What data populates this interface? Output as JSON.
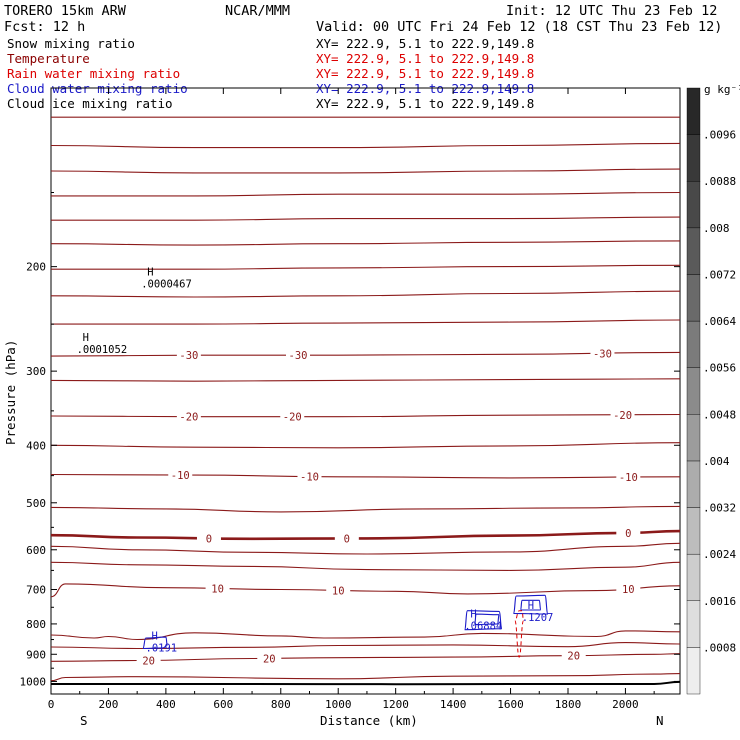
{
  "header": {
    "model": "TORERO  15km ARW",
    "center": "NCAR/MMM",
    "init": "Init: 12 UTC Thu 23 Feb 12",
    "fcst": "Fcst:   12 h",
    "valid": "Valid: 00 UTC Fri 24 Feb 12 (18 CST Thu 23 Feb 12)"
  },
  "legend": [
    {
      "label": "Snow mixing ratio",
      "xy": "XY= 222.9,  5.1 to 222.9,149.8",
      "color": "#000000"
    },
    {
      "label": "Temperature",
      "xy": "XY= 222.9,  5.1 to 222.9,149.8",
      "color": "#8b0000"
    },
    {
      "label": "Rain water mixing ratio",
      "xy": "XY= 222.9,  5.1 to 222.9,149.8",
      "color": "#dd0000"
    },
    {
      "label": "Cloud water mixing ratio",
      "xy": "XY= 222.9,  5.1 to 222.9,149.8",
      "color": "#1a1ac8"
    },
    {
      "label": "Cloud ice mixing ratio",
      "xy": "XY= 222.9,  5.1 to 222.9,149.8",
      "color": "#000000"
    }
  ],
  "colorbar": {
    "unit": "g kg⁻¹",
    "labels": [
      ".0096",
      ".0088",
      ".008",
      ".0072",
      ".0064",
      ".0056",
      ".0048",
      ".004",
      ".0032",
      ".0024",
      ".0016",
      ".0008"
    ],
    "levels": [
      0.0008,
      0.0016,
      0.0024,
      0.0032,
      0.004,
      0.0048,
      0.0056,
      0.0064,
      0.0072,
      0.008,
      0.0088,
      0.0096,
      0.0104
    ]
  },
  "chart_data": {
    "type": "cross-section contour",
    "xlabel": "Distance (km)",
    "ylabel": "Pressure (hPa)",
    "xlim": [
      0,
      2190
    ],
    "ylim": [
      1050,
      100
    ],
    "yscale": "log",
    "x_ticks": [
      0,
      200,
      400,
      600,
      800,
      1000,
      1200,
      1400,
      1600,
      1800,
      2000
    ],
    "y_ticks": [
      200,
      300,
      400,
      500,
      600,
      700,
      800,
      900,
      1000
    ],
    "x_end_labels": {
      "left": "S",
      "right": "N"
    },
    "temperature_isotherms": [
      {
        "p": [
          112,
          112,
          112,
          112,
          112
        ],
        "x": [
          0,
          500,
          1000,
          1600,
          2190
        ]
      },
      {
        "p": [
          125,
          126,
          126,
          125,
          124
        ],
        "x": [
          0,
          500,
          1000,
          1600,
          2190
        ]
      },
      {
        "p": [
          138,
          139,
          139,
          138,
          137
        ],
        "x": [
          0,
          500,
          1000,
          1600,
          2190
        ]
      },
      {
        "p": [
          152,
          152,
          151,
          151,
          150
        ],
        "x": [
          0,
          500,
          1000,
          1600,
          2190
        ]
      },
      {
        "p": [
          167,
          167,
          166,
          166,
          165
        ],
        "x": [
          0,
          500,
          1000,
          1600,
          2190
        ]
      },
      {
        "p": [
          183,
          184,
          183,
          182,
          181
        ],
        "x": [
          0,
          500,
          1000,
          1600,
          2190
        ]
      },
      {
        "p": [
          202,
          202,
          201,
          200,
          199
        ],
        "x": [
          0,
          500,
          1000,
          1600,
          2190
        ]
      },
      {
        "p": [
          224,
          225,
          224,
          222,
          220
        ],
        "x": [
          0,
          500,
          1000,
          1600,
          2190
        ]
      },
      {
        "p": [
          250,
          250,
          249,
          248,
          246
        ],
        "x": [
          0,
          500,
          1000,
          1600,
          2190
        ]
      },
      {
        "label": "-30",
        "label_x": [
          480,
          860,
          1920
        ],
        "p": [
          283,
          282,
          282,
          281,
          279
        ],
        "x": [
          0,
          500,
          1000,
          1600,
          2190
        ]
      },
      {
        "p": [
          311,
          312,
          311,
          310,
          309
        ],
        "x": [
          0,
          500,
          1000,
          1600,
          2190
        ]
      },
      {
        "label": "-20",
        "label_x": [
          480,
          840,
          1990
        ],
        "p": [
          357,
          358,
          358,
          356,
          355
        ],
        "x": [
          0,
          500,
          1000,
          1600,
          2190
        ]
      },
      {
        "p": [
          400,
          403,
          404,
          401,
          396
        ],
        "x": [
          0,
          500,
          1000,
          1600,
          2190
        ]
      },
      {
        "label": "-10",
        "label_x": [
          450,
          900,
          2010
        ],
        "p": [
          448,
          449,
          452,
          454,
          452
        ],
        "x": [
          0,
          500,
          1000,
          1600,
          2190
        ]
      },
      {
        "p": [
          509,
          512,
          518,
          512,
          510,
          507
        ],
        "x": [
          0,
          400,
          800,
          1300,
          1800,
          2190
        ]
      },
      {
        "label": "0",
        "label_x": [
          550,
          1030,
          2010
        ],
        "p": [
          567,
          572,
          575,
          574,
          568,
          562,
          558
        ],
        "x": [
          0,
          300,
          700,
          1100,
          1600,
          2000,
          2190
        ],
        "bold": true
      },
      {
        "p": [
          592,
          600,
          606,
          610,
          605,
          592,
          585
        ],
        "x": [
          0,
          300,
          700,
          1100,
          1600,
          2000,
          2190
        ]
      },
      {
        "p": [
          630,
          636,
          640,
          648,
          650,
          642,
          630
        ],
        "x": [
          0,
          300,
          700,
          1100,
          1600,
          2000,
          2190
        ]
      },
      {
        "label": "10",
        "label_x": [
          580,
          1000,
          2010
        ],
        "p": [
          720,
          685,
          695,
          700,
          705,
          712,
          703,
          690
        ],
        "x": [
          0,
          50,
          400,
          800,
          1200,
          1450,
          1900,
          2190
        ]
      },
      {
        "p": [
          835,
          845,
          840,
          850,
          828,
          838,
          845,
          842,
          830,
          840,
          822,
          825
        ],
        "x": [
          0,
          150,
          200,
          300,
          500,
          800,
          950,
          1300,
          1500,
          1900,
          2000,
          2190
        ]
      },
      {
        "p": [
          875,
          880,
          876,
          870,
          868,
          874,
          860,
          865
        ],
        "x": [
          0,
          300,
          700,
          1000,
          1400,
          1800,
          2000,
          2190
        ]
      },
      {
        "label": "20",
        "label_x": [
          340,
          760,
          1820
        ],
        "p": [
          925,
          922,
          915,
          912,
          910,
          905,
          900,
          898
        ],
        "x": [
          0,
          300,
          700,
          1000,
          1400,
          1800,
          2100,
          2190
        ]
      },
      {
        "p": [
          997,
          985,
          982,
          990,
          980,
          978,
          972,
          970
        ],
        "x": [
          0,
          50,
          300,
          1000,
          1400,
          1800,
          2100,
          2190
        ]
      }
    ],
    "surface": {
      "p": [
        1010,
        1010,
        1011,
        1010,
        1010,
        1002
      ],
      "x": [
        0,
        700,
        1200,
        1700,
        2100,
        2190
      ]
    },
    "maxima_labels": [
      {
        "field": "snow",
        "mark": "H",
        "value": ".0000467",
        "x": 335,
        "p": 207
      },
      {
        "field": "ice",
        "mark": "H",
        "value": ".0001052",
        "x": 110,
        "p": 267
      },
      {
        "field": "cloud_water",
        "mark": "H",
        "value": ".0191",
        "x": 350,
        "p": 850
      },
      {
        "field": "cloud_water",
        "mark": "H",
        "value": ".06884",
        "x": 1460,
        "p": 780
      },
      {
        "field": "cloud_water",
        "mark": "H",
        "value": ".1207",
        "x": 1660,
        "p": 755
      }
    ],
    "cloud_water_contours": [
      {
        "x": [
          330,
          400,
          405,
          390,
          320,
          330
        ],
        "p": [
          845,
          842,
          870,
          878,
          880,
          845
        ]
      },
      {
        "x": [
          1450,
          1560,
          1570,
          1440,
          1450
        ],
        "p": [
          760,
          762,
          815,
          818,
          760
        ]
      },
      {
        "x": [
          1480,
          1560,
          1555,
          1475,
          1480
        ],
        "p": [
          770,
          772,
          800,
          802,
          770
        ]
      },
      {
        "x": [
          1620,
          1720,
          1730,
          1610,
          1620
        ],
        "p": [
          718,
          716,
          770,
          768,
          718
        ]
      },
      {
        "x": [
          1640,
          1700,
          1705,
          1635,
          1640
        ],
        "p": [
          730,
          730,
          758,
          758,
          730
        ]
      }
    ],
    "rain_contours": [
      {
        "x": [
          1615,
          1630,
          1645,
          1640,
          1630,
          1615
        ],
        "p": [
          790,
          910,
          790,
          760,
          760,
          790
        ]
      }
    ]
  }
}
